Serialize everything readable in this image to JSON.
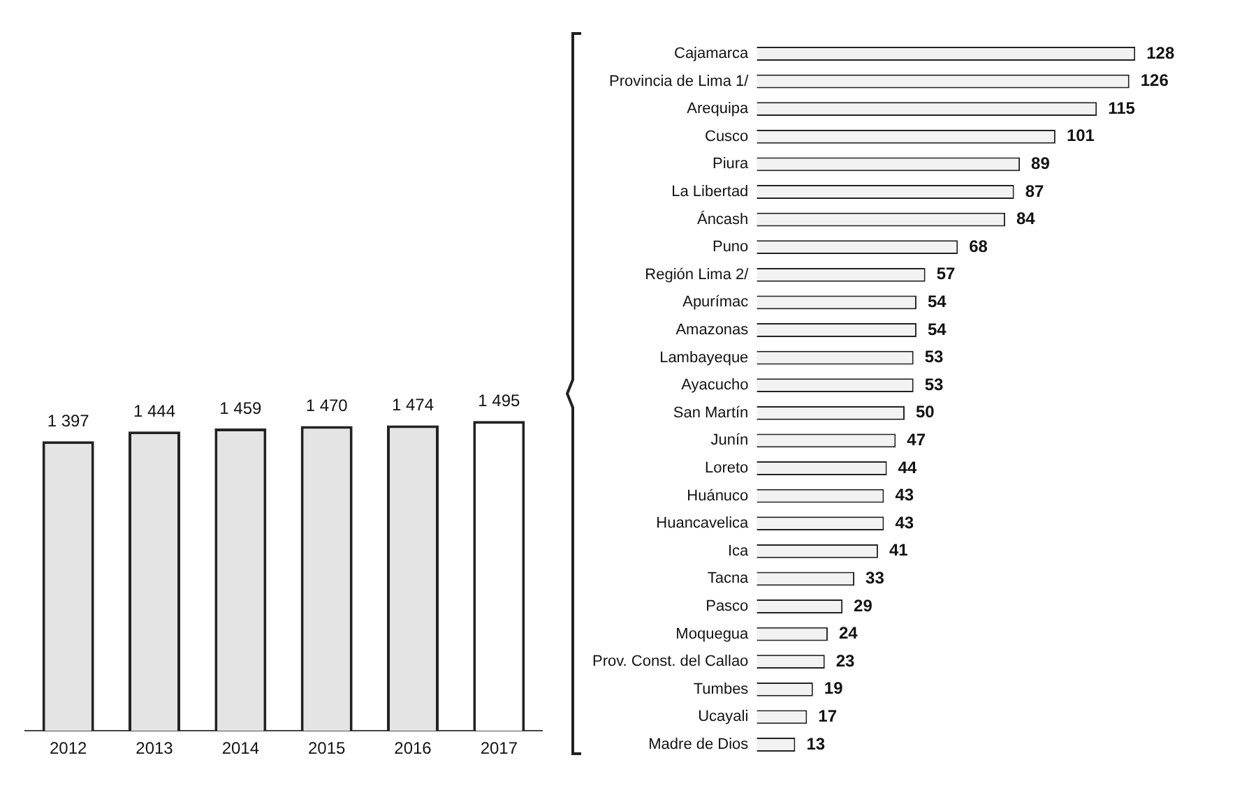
{
  "chart_data": [
    {
      "type": "bar",
      "categories": [
        "2012",
        "2013",
        "2014",
        "2015",
        "2016",
        "2017"
      ],
      "values": [
        1397,
        1444,
        1459,
        1470,
        1474,
        1495
      ],
      "colors": [
        "#e4e4e4",
        "#e4e4e4",
        "#e4e4e4",
        "#e4e4e4",
        "#e4e4e4",
        "#ffffff"
      ],
      "value_labels": [
        "1 397",
        "1 444",
        "1 459",
        "1 470",
        "1 474",
        "1 495"
      ],
      "tick_labels": "x"
    },
    {
      "type": "bar",
      "orientation": "horizontal",
      "categories": [
        "Cajamarca",
        "Provincia de Lima 1/",
        "Arequipa",
        "Cusco",
        "Piura",
        "La Libertad",
        "Áncash",
        "Puno",
        "Región Lima 2/",
        "Apurímac",
        "Amazonas",
        "Lambayeque",
        "Ayacucho",
        "San Martín",
        "Junín",
        "Loreto",
        "Huánuco",
        "Huancavelica",
        "Ica",
        "Tacna",
        "Pasco",
        "Moquegua",
        "Prov. Const. del Callao",
        "Tumbes",
        "Ucayali",
        "Madre de Dios"
      ],
      "values": [
        128,
        126,
        115,
        101,
        89,
        87,
        84,
        68,
        57,
        54,
        54,
        53,
        53,
        50,
        47,
        44,
        43,
        43,
        41,
        33,
        29,
        24,
        23,
        19,
        17,
        13
      ],
      "color": "#f2f2f2",
      "data_labels": true,
      "tick_labels": "y"
    }
  ]
}
